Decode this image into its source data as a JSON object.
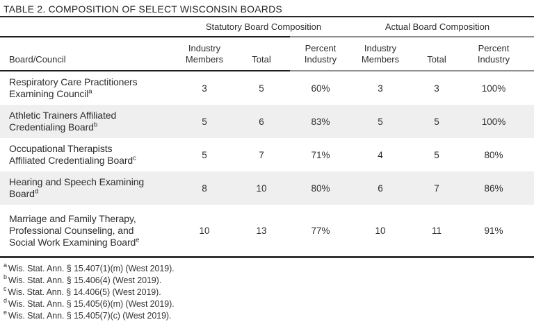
{
  "title": "TABLE 2. COMPOSITION OF SELECT WISCONSIN BOARDS",
  "groups": {
    "statutory": "Statutory Board Composition",
    "actual": "Actual Board Composition"
  },
  "columns": {
    "board": "Board/Council",
    "stat_industry": "Industry\nMembers",
    "stat_total": "Total",
    "stat_percent": "Percent\nIndustry",
    "act_industry": "Industry\nMembers",
    "act_total": "Total",
    "act_percent": "Percent\nIndustry"
  },
  "rows": [
    {
      "name": "Respiratory Care Practitioners\nExamining Council",
      "note": "a",
      "values": [
        "3",
        "5",
        "60%",
        "3",
        "3",
        "100%"
      ]
    },
    {
      "name": "Athletic Trainers Affiliated\nCredentialing Board",
      "note": "b",
      "values": [
        "5",
        "6",
        "83%",
        "5",
        "5",
        "100%"
      ]
    },
    {
      "name": "Occupational Therapists\nAffiliated Credentialing Board",
      "note": "c",
      "values": [
        "5",
        "7",
        "71%",
        "4",
        "5",
        "80%"
      ]
    },
    {
      "name": "Hearing and Speech Examining\nBoard",
      "note": "d",
      "values": [
        "8",
        "10",
        "80%",
        "6",
        "7",
        "86%"
      ]
    },
    {
      "name": "Marriage and Family Therapy,\nProfessional Counseling, and\nSocial Work Examining Board",
      "note": "e",
      "values": [
        "10",
        "13",
        "77%",
        "10",
        "11",
        "91%"
      ]
    }
  ],
  "footnotes": [
    {
      "note": "a",
      "text": "Wis. Stat. Ann. § 15.407(1)(m) (West 2019)."
    },
    {
      "note": "b",
      "text": "Wis. Stat. Ann. § 15.406(4) (West 2019)."
    },
    {
      "note": "c",
      "text": "Wis. Stat. Ann. § 14.406(5) (West 2019)."
    },
    {
      "note": "d",
      "text": "Wis. Stat. Ann. § 15.405(6)(m) (West 2019)."
    },
    {
      "note": "e",
      "text": "Wis. Stat. Ann. § 15.405(7)(c) (West 2019)."
    }
  ],
  "colors": {
    "stripe": "#efefef",
    "rule_dark": "#1f1f1f",
    "rule_gray": "#8f8f8f",
    "text": "#2d2d2d"
  }
}
